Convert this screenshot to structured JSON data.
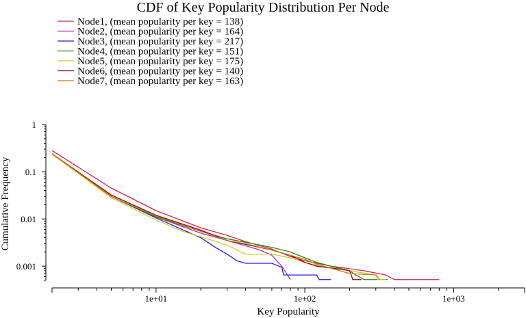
{
  "chart_data": {
    "type": "line",
    "title": "CDF of Key Popularity Distribution Per Node",
    "xlabel": "Key Popularity",
    "ylabel": "Cumulative Frequency",
    "x_scale": "log",
    "y_scale": "log",
    "xlim": [
      2,
      3000
    ],
    "ylim": [
      0.0005,
      1
    ],
    "grid": false,
    "legend_position": "top-left",
    "x_major_ticks": [
      {
        "value": 10,
        "label": "1e+01"
      },
      {
        "value": 100,
        "label": "1e+02"
      },
      {
        "value": 1000,
        "label": "1e+03"
      }
    ],
    "y_major_ticks": [
      {
        "value": 1,
        "label": "1"
      },
      {
        "value": 0.1,
        "label": "0.1"
      },
      {
        "value": 0.01,
        "label": "0.01"
      },
      {
        "value": 0.001,
        "label": "0.001"
      }
    ],
    "series": [
      {
        "name": "Node1, (mean popularity per key = 138)",
        "color": "#cc2244",
        "points": [
          [
            2,
            0.28
          ],
          [
            5,
            0.045
          ],
          [
            10,
            0.015
          ],
          [
            20,
            0.0065
          ],
          [
            30,
            0.0045
          ],
          [
            40,
            0.0033
          ],
          [
            60,
            0.0023
          ],
          [
            80,
            0.0016
          ],
          [
            100,
            0.0013
          ],
          [
            150,
            0.001
          ],
          [
            250,
            0.0008
          ],
          [
            350,
            0.00065
          ],
          [
            400,
            0.00052
          ],
          [
            800,
            0.00052
          ]
        ]
      },
      {
        "name": "Node2, (mean popularity per key = 164)",
        "color": "#bb22cc",
        "points": [
          [
            2,
            0.235
          ],
          [
            5,
            0.03
          ],
          [
            10,
            0.011
          ],
          [
            20,
            0.005
          ],
          [
            30,
            0.0035
          ],
          [
            40,
            0.0027
          ],
          [
            50,
            0.0022
          ],
          [
            60,
            0.0017
          ],
          [
            70,
            0.001
          ],
          [
            80,
            0.00052
          ]
        ]
      },
      {
        "name": "Node3, (mean popularity per key = 217)",
        "color": "#1a1aee",
        "points": [
          [
            2,
            0.24
          ],
          [
            5,
            0.03
          ],
          [
            10,
            0.0105
          ],
          [
            20,
            0.004
          ],
          [
            25,
            0.0025
          ],
          [
            30,
            0.0018
          ],
          [
            35,
            0.0013
          ],
          [
            40,
            0.00115
          ],
          [
            60,
            0.00115
          ],
          [
            70,
            0.00095
          ],
          [
            72,
            0.00065
          ],
          [
            120,
            0.00065
          ],
          [
            125,
            0.00052
          ],
          [
            150,
            0.00052
          ]
        ]
      },
      {
        "name": "Node4, (mean popularity per key = 151)",
        "color": "#1a8a1a",
        "points": [
          [
            2,
            0.24
          ],
          [
            5,
            0.03
          ],
          [
            10,
            0.011
          ],
          [
            20,
            0.0055
          ],
          [
            30,
            0.0038
          ],
          [
            40,
            0.0032
          ],
          [
            60,
            0.0025
          ],
          [
            80,
            0.002
          ],
          [
            100,
            0.0015
          ],
          [
            120,
            0.0012
          ],
          [
            150,
            0.001
          ],
          [
            200,
            0.0008
          ],
          [
            220,
            0.00065
          ],
          [
            250,
            0.00052
          ],
          [
            360,
            0.00052
          ]
        ]
      },
      {
        "name": "Node5, (mean popularity per key = 175)",
        "color": "#cccc22",
        "points": [
          [
            2,
            0.235
          ],
          [
            5,
            0.028
          ],
          [
            10,
            0.0095
          ],
          [
            15,
            0.0055
          ],
          [
            20,
            0.0042
          ],
          [
            30,
            0.0028
          ],
          [
            40,
            0.0018
          ],
          [
            60,
            0.0018
          ],
          [
            80,
            0.0015
          ],
          [
            100,
            0.0012
          ],
          [
            130,
            0.001
          ],
          [
            200,
            0.0008
          ],
          [
            300,
            0.00065
          ],
          [
            310,
            0.00052
          ],
          [
            350,
            0.00052
          ]
        ]
      },
      {
        "name": "Node6, (mean popularity per key = 140)",
        "color": "#880000",
        "points": [
          [
            2,
            0.24
          ],
          [
            5,
            0.032
          ],
          [
            10,
            0.012
          ],
          [
            20,
            0.0058
          ],
          [
            30,
            0.0035
          ],
          [
            40,
            0.0029
          ],
          [
            60,
            0.0022
          ],
          [
            80,
            0.0017
          ],
          [
            100,
            0.0012
          ],
          [
            120,
            0.001
          ],
          [
            180,
            0.00085
          ],
          [
            200,
            0.0008
          ],
          [
            210,
            0.00052
          ],
          [
            240,
            0.00052
          ]
        ]
      },
      {
        "name": "Node7, (mean popularity per key = 163)",
        "color": "#cc7711",
        "points": [
          [
            2,
            0.24
          ],
          [
            5,
            0.03
          ],
          [
            10,
            0.0115
          ],
          [
            20,
            0.0055
          ],
          [
            30,
            0.0035
          ],
          [
            40,
            0.003
          ],
          [
            60,
            0.0022
          ],
          [
            80,
            0.0017
          ],
          [
            100,
            0.0014
          ],
          [
            120,
            0.0011
          ],
          [
            150,
            0.0009
          ],
          [
            200,
            0.0007
          ],
          [
            300,
            0.00065
          ],
          [
            320,
            0.00052
          ]
        ]
      }
    ]
  }
}
